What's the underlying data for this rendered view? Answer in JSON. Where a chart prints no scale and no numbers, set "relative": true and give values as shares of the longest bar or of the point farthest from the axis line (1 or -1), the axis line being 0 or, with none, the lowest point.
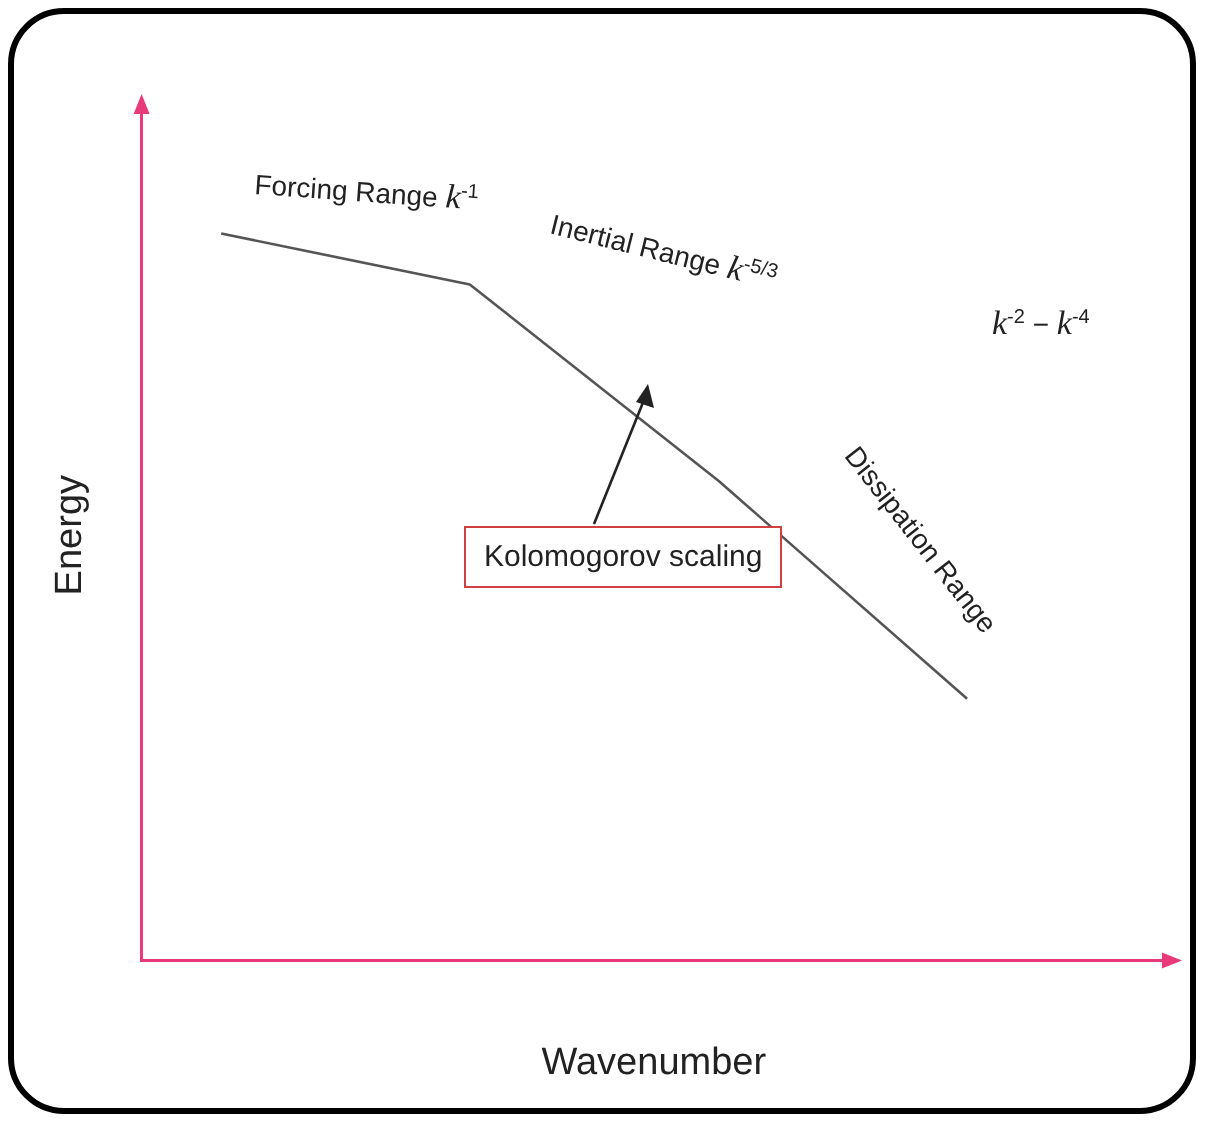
{
  "chart_data": {
    "type": "line",
    "xlabel": "Wavenumber",
    "ylabel": "Energy",
    "relative": true,
    "tick_labels": false,
    "grid": false,
    "legend": false,
    "marker": "none",
    "line_style": "solid",
    "categories": [
      null,
      null,
      null,
      null
    ],
    "series": [
      {
        "color": "#555555",
        "values": [
          1,
          0.93,
          0.66,
          0.36
        ]
      }
    ],
    "annotations": [
      "Forcing Range  k$^{-1}$",
      "Inertial Range  k$^{-5/3}$",
      "Dissipation Range",
      "k$^{-2}$ − k$^{-4}$",
      "Kolomogorov scaling"
    ]
  }
}
